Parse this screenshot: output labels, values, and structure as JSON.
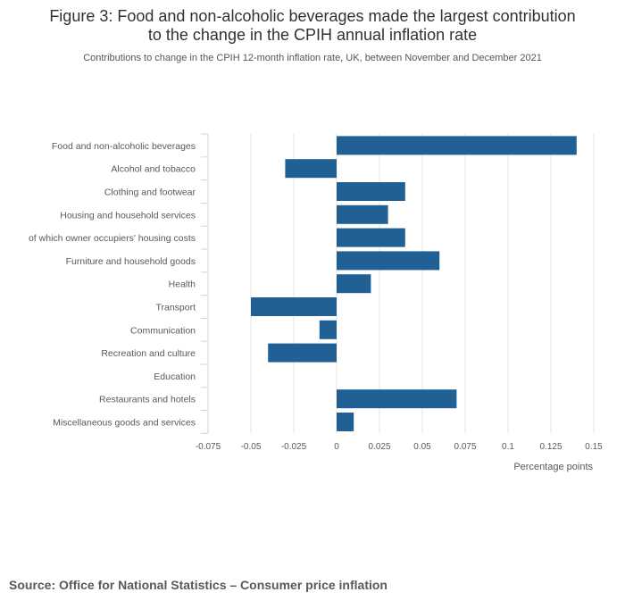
{
  "header": {
    "title_line1": "Figure 3: Food and non-alcoholic beverages made the largest contribution",
    "title_line2": "to the change in the CPIH annual inflation rate",
    "subtitle": "Contributions to change in the CPIH 12-month inflation rate, UK, between November and December 2021"
  },
  "chart_data": {
    "type": "bar",
    "orientation": "horizontal",
    "title": "Figure 3: Food and non-alcoholic beverages made the largest contribution to the change in the CPIH annual inflation rate",
    "subtitle": "Contributions to change in the CPIH 12-month inflation rate, UK, between November and December 2021",
    "categories": [
      "Food and non-alcoholic beverages",
      "Alcohol and tobacco",
      "Clothing and footwear",
      "Housing and household services",
      "of which owner occupiers' housing costs",
      "Furniture and household goods",
      "Health",
      "Transport",
      "Communication",
      "Recreation and culture",
      "Education",
      "Restaurants and hotels",
      "Miscellaneous goods and services"
    ],
    "values": [
      0.14,
      -0.03,
      0.04,
      0.03,
      0.04,
      0.06,
      0.02,
      -0.05,
      -0.01,
      -0.04,
      0,
      0.07,
      0.01
    ],
    "xlim": [
      -0.075,
      0.15
    ],
    "xticks": [
      -0.075,
      -0.05,
      -0.025,
      0,
      0.025,
      0.05,
      0.075,
      0.1,
      0.125,
      0.15
    ],
    "xtick_labels": [
      "-0.075",
      "-0.05",
      "-0.025",
      "0",
      "0.025",
      "0.05",
      "0.075",
      "0.1",
      "0.125",
      "0.15"
    ],
    "xlabel": "Percentage points",
    "ylabel": "",
    "bar_color": "#206095",
    "grid": true,
    "legend": "none"
  },
  "footer": {
    "source": "Source: Office for National Statistics – Consumer price inflation"
  }
}
